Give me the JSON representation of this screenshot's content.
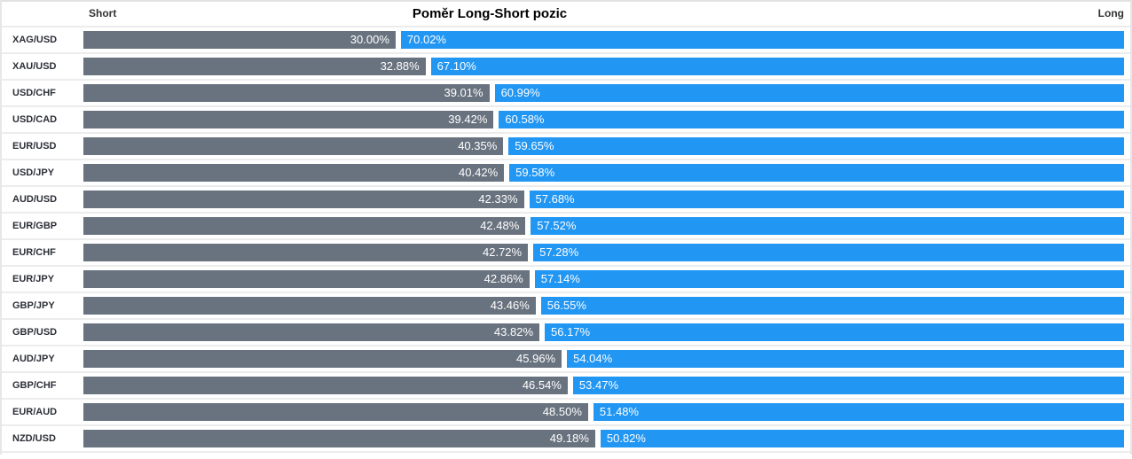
{
  "chart": {
    "title": "Poměr Long-Short pozic",
    "short_axis_label": "Short",
    "long_axis_label": "Long",
    "colors": {
      "short_bar": "#69737f",
      "long_bar": "#2196f3",
      "grid_line": "#ececec",
      "label_text": "#2c2f37",
      "bar_text": "#ffffff"
    }
  },
  "chart_data": {
    "type": "bar",
    "orientation": "horizontal",
    "stacked": true,
    "title": "Poměr Long-Short pozic",
    "xlabel": "",
    "ylabel": "",
    "xlim": [
      0,
      100
    ],
    "grid": true,
    "legend_position": "top (Short left, Long right)",
    "categories": [
      "XAG/USD",
      "XAU/USD",
      "USD/CHF",
      "USD/CAD",
      "EUR/USD",
      "USD/JPY",
      "AUD/USD",
      "EUR/GBP",
      "EUR/CHF",
      "EUR/JPY",
      "GBP/JPY",
      "GBP/USD",
      "AUD/JPY",
      "GBP/CHF",
      "EUR/AUD",
      "NZD/USD"
    ],
    "series": [
      {
        "name": "Short",
        "color": "#69737f",
        "values": [
          30.0,
          32.88,
          39.01,
          39.42,
          40.35,
          40.42,
          42.33,
          42.48,
          42.72,
          42.86,
          43.46,
          43.82,
          45.96,
          46.54,
          48.5,
          49.18
        ],
        "labels": [
          "30.00%",
          "32.88%",
          "39.01%",
          "39.42%",
          "40.35%",
          "40.42%",
          "42.33%",
          "42.48%",
          "42.72%",
          "42.86%",
          "43.46%",
          "43.82%",
          "45.96%",
          "46.54%",
          "48.50%",
          "49.18%"
        ]
      },
      {
        "name": "Long",
        "color": "#2196f3",
        "values": [
          70.02,
          67.1,
          60.99,
          60.58,
          59.65,
          59.58,
          57.68,
          57.52,
          57.28,
          57.14,
          56.55,
          56.17,
          54.04,
          53.47,
          51.48,
          50.82
        ],
        "labels": [
          "70.02%",
          "67.10%",
          "60.99%",
          "60.58%",
          "59.65%",
          "59.58%",
          "57.68%",
          "57.52%",
          "57.28%",
          "57.14%",
          "56.55%",
          "56.17%",
          "54.04%",
          "53.47%",
          "51.48%",
          "50.82%"
        ]
      }
    ]
  }
}
